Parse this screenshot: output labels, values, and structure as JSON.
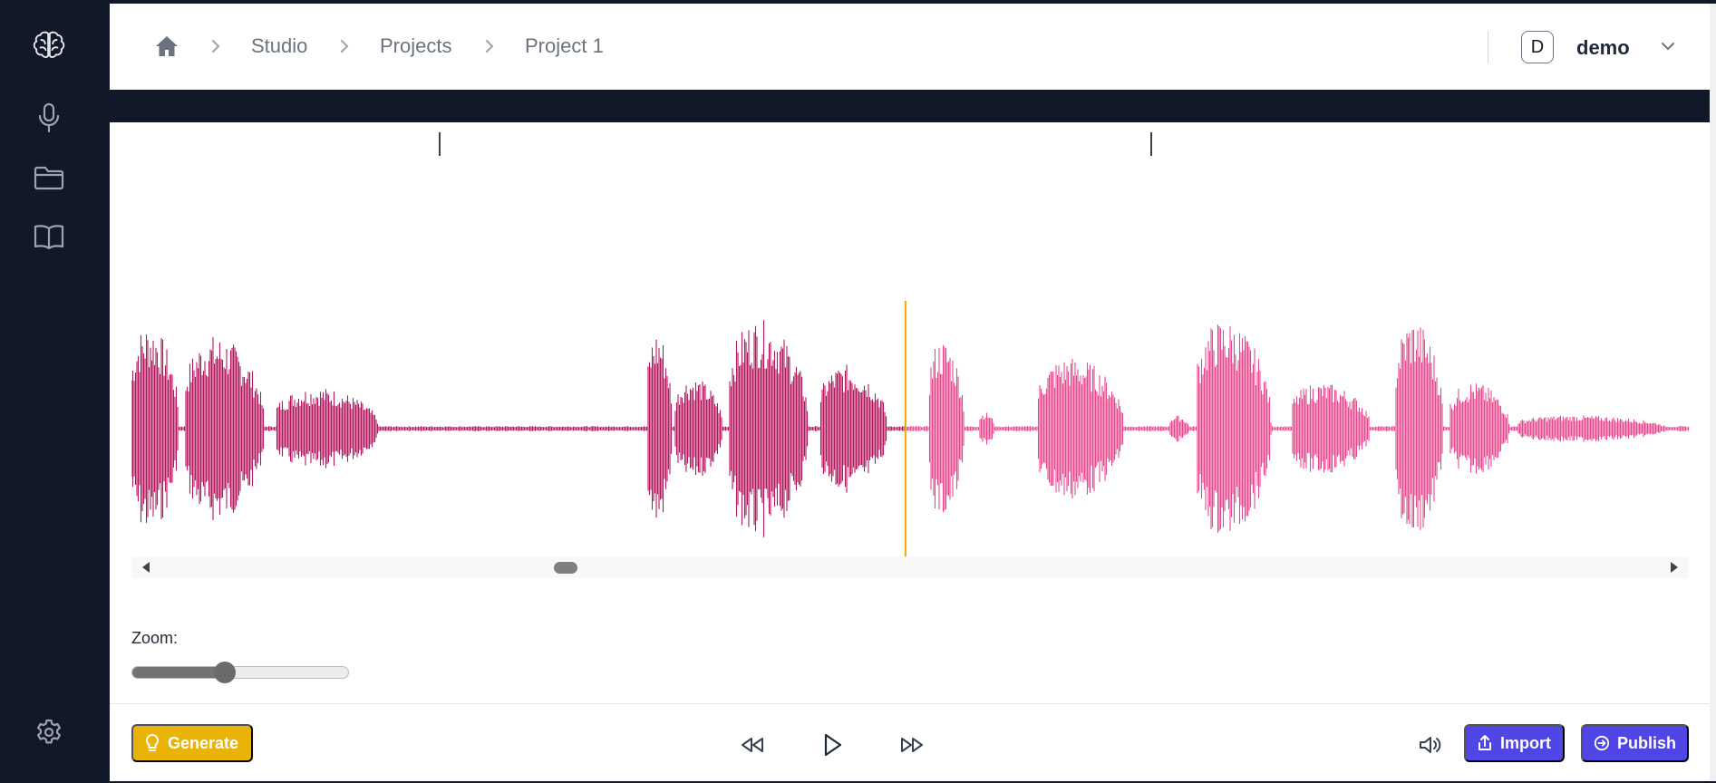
{
  "sidebar": {
    "icons": [
      "brain-logo-icon",
      "microphone-icon",
      "folder-icon",
      "book-icon",
      "settings-icon"
    ]
  },
  "breadcrumb": {
    "home_icon": "home-icon",
    "items": [
      "Studio",
      "Projects",
      "Project 1"
    ]
  },
  "user": {
    "avatar_initial": "D",
    "name": "demo"
  },
  "waveform": {
    "played_color": "#b5175f",
    "unplayed_color": "#e8478f",
    "cursor_color": "#f0a500",
    "playhead_fraction": 0.497
  },
  "zoom": {
    "label": "Zoom:",
    "value_fraction": 0.43
  },
  "controls": {
    "generate_label": "Generate",
    "import_label": "Import",
    "publish_label": "Publish",
    "icons": [
      "rewind-icon",
      "play-icon",
      "fast-forward-icon",
      "volume-icon"
    ]
  },
  "colors": {
    "sidebar_bg": "#111827",
    "accent": "#4f46e5",
    "generate": "#eab308"
  }
}
